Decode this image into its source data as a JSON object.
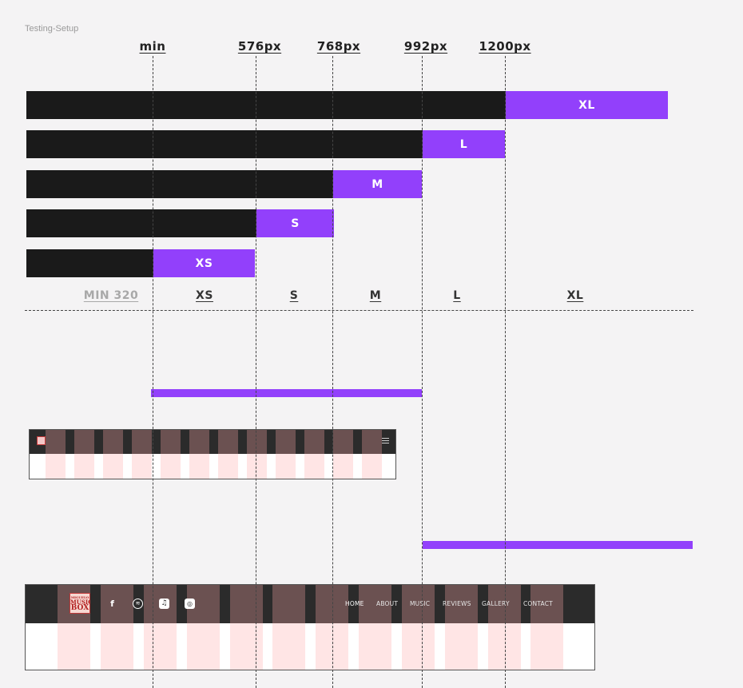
{
  "frame_label": "Testing-Setup",
  "breakpoints": [
    "min",
    "576px",
    "768px",
    "992px",
    "1200px"
  ],
  "bars": [
    "XL",
    "L",
    "M",
    "S",
    "XS"
  ],
  "ranges": [
    "MIN 320",
    "XS",
    "S",
    "M",
    "L",
    "XL"
  ],
  "mobile_mockup": {
    "logo": "logo-icon",
    "menu": "hamburger-icon"
  },
  "desktop_mockup": {
    "logo_text": [
      "MIGUELO",
      "MUSIC",
      "BOX"
    ],
    "social_icons": [
      "facebook-icon",
      "spotify-icon",
      "apple-music-icon",
      "podcast-icon"
    ],
    "nav": [
      "HOME",
      "ABOUT",
      "MUSIC",
      "REVIEWS",
      "GALLERY",
      "CONTACT"
    ],
    "active_nav": "HOME"
  },
  "colors": {
    "accent": "#9240fb",
    "bar": "#1a1a1a",
    "header": "#2b2b2b",
    "column": "#ffaaaa",
    "background": "#f4f3f4"
  }
}
